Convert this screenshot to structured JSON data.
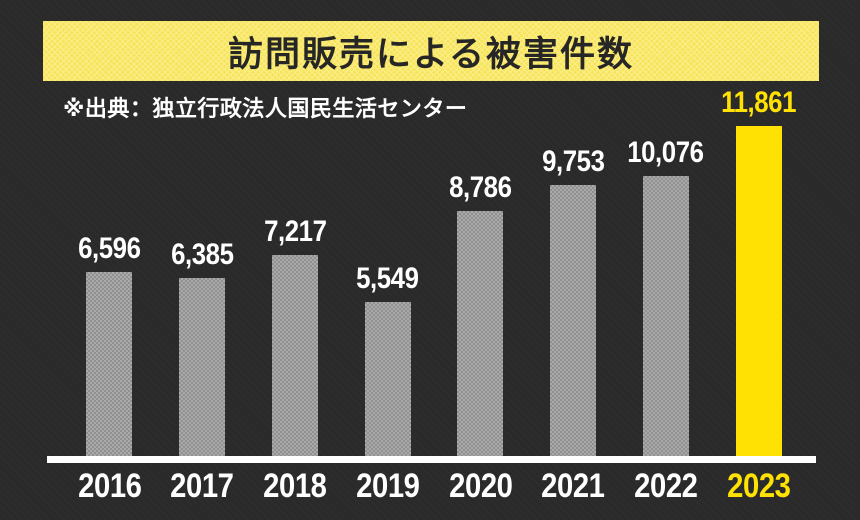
{
  "page": {
    "title_banner": "訪問販売による被害件数",
    "source_note": "※出典：独立行政法人国民生活センター"
  },
  "colors": {
    "background": "#2a2a2b",
    "header_bg": "#f6e45c",
    "header_bg_light": "#fbee8a",
    "accent_yellow": "#ffe104",
    "bar_gray": "#909090",
    "bar_gray_light": "#aaaaaa",
    "title_text": "#262626",
    "label_white": "#ffffff"
  },
  "chart_data": {
    "type": "bar",
    "title": "訪問販売による被害件数",
    "source": "※出典：独立行政法人国民生活センター",
    "categories": [
      "2016",
      "2017",
      "2018",
      "2019",
      "2020",
      "2021",
      "2022",
      "2023"
    ],
    "values": [
      6596,
      6385,
      7217,
      5549,
      8786,
      9753,
      10076,
      11861
    ],
    "value_labels": [
      "6,596",
      "6,385",
      "7,217",
      "5,549",
      "8,786",
      "9,753",
      "10,076",
      "11,861"
    ],
    "highlight_index": 7,
    "highlight_category": "2023",
    "xlabel": "",
    "ylabel": "",
    "ylim": [
      0,
      12000
    ],
    "grid": false,
    "legend": "none",
    "bar_color": "#909090",
    "highlight_color": "#ffe104",
    "label_color": "#ffffff",
    "highlight_label_color": "#ffe104"
  }
}
